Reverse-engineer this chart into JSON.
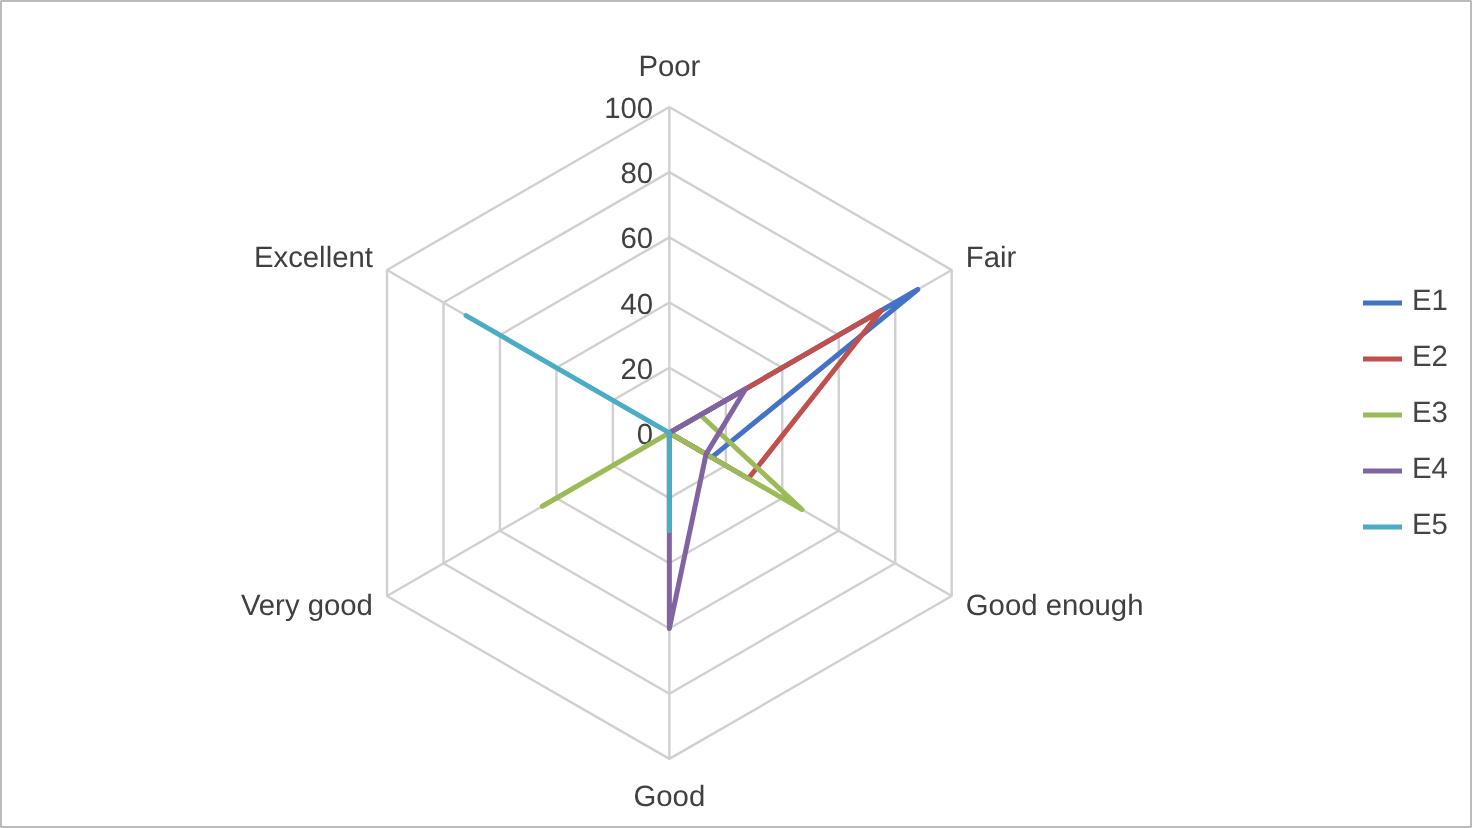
{
  "chart_data": {
    "type": "radar",
    "categories": [
      "Poor",
      "Fair",
      "Good enough",
      "Good",
      "Very good",
      "Excellent"
    ],
    "ylim": [
      0,
      100
    ],
    "yticks": [
      0,
      20,
      40,
      60,
      80,
      100
    ],
    "legend": "right",
    "grid": true,
    "series": [
      {
        "name": "E1",
        "color": "#4472c4",
        "values": [
          0,
          88,
          15,
          0,
          0,
          0
        ]
      },
      {
        "name": "E2",
        "color": "#c0504d",
        "values": [
          0,
          75,
          28,
          0,
          0,
          0
        ]
      },
      {
        "name": "E3",
        "color": "#9bbb59",
        "values": [
          0,
          11,
          47,
          0,
          45,
          0
        ]
      },
      {
        "name": "E4",
        "color": "#8064a2",
        "values": [
          0,
          27,
          13,
          60,
          0,
          0
        ]
      },
      {
        "name": "E5",
        "color": "#4bacc6",
        "values": [
          0,
          0,
          0,
          30,
          0,
          72
        ]
      }
    ]
  }
}
